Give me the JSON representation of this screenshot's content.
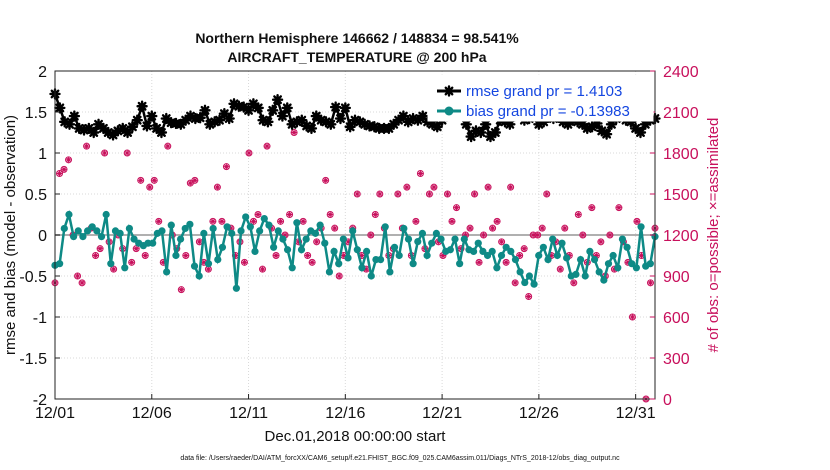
{
  "chart_data": {
    "type": "line",
    "title": "Northern Hemisphere 146662 / 148834 = 98.541%",
    "subtitle": "AIRCRAFT_TEMPERATURE @ 200 hPa",
    "xlabel": "Dec.01,2018 00:00:00 start",
    "ylabel": "rmse and bias (model - observation)",
    "ylabel_right": "# of obs: o=possible; ×=assimilated",
    "xlim": [
      1,
      32
    ],
    "ylim": [
      -2,
      2
    ],
    "ylim_right": [
      0,
      2400
    ],
    "x_ticks": [
      {
        "value": 1,
        "label": "12/01"
      },
      {
        "value": 6,
        "label": "12/06"
      },
      {
        "value": 11,
        "label": "12/11"
      },
      {
        "value": 16,
        "label": "12/16"
      },
      {
        "value": 21,
        "label": "12/21"
      },
      {
        "value": 26,
        "label": "12/26"
      },
      {
        "value": 31,
        "label": "12/31"
      }
    ],
    "y_ticks": [
      "-2",
      "-1.5",
      "-1",
      "-0.5",
      "0",
      "0.5",
      "1",
      "1.5",
      "2"
    ],
    "y_ticks_right": [
      "0",
      "300",
      "600",
      "900",
      "1200",
      "1500",
      "1800",
      "2100",
      "2400"
    ],
    "legend_position": "top-right",
    "series": [
      {
        "name": "rmse grand pr = 1.4103",
        "color": "#000000",
        "marker": "star",
        "values": [
          1.72,
          1.55,
          1.38,
          1.35,
          1.45,
          1.3,
          1.28,
          1.3,
          1.25,
          1.35,
          1.3,
          1.25,
          1.22,
          1.27,
          1.3,
          1.25,
          1.32,
          1.4,
          1.57,
          1.33,
          1.45,
          1.3,
          1.25,
          1.42,
          1.37,
          1.36,
          1.35,
          1.4,
          1.45,
          1.42,
          1.43,
          1.52,
          1.35,
          1.38,
          1.4,
          1.48,
          1.42,
          1.6,
          1.57,
          1.56,
          1.52,
          1.6,
          1.55,
          1.4,
          1.38,
          1.52,
          1.65,
          1.45,
          1.55,
          1.35,
          1.38,
          1.4,
          1.33,
          1.3,
          1.45,
          1.4,
          1.38,
          1.35,
          1.56,
          1.42,
          1.55,
          1.32,
          1.4,
          1.38,
          1.35,
          1.33,
          1.32,
          1.3,
          1.3,
          1.3,
          1.35,
          1.4,
          1.45,
          1.38,
          1.42,
          1.4,
          1.45,
          1.38,
          1.35,
          1.32,
          1.4,
          1.45,
          1.5,
          1.55,
          1.48,
          1.35,
          1.2,
          1.27,
          1.25,
          1.35,
          1.2,
          1.25,
          1.4,
          1.38,
          1.35,
          1.45,
          1.52,
          1.4,
          1.42,
          1.5,
          1.35,
          1.38,
          1.45,
          1.42,
          1.52,
          1.38,
          1.35,
          1.4,
          1.38,
          1.35,
          1.3,
          1.32,
          1.36,
          1.27,
          1.23,
          1.35,
          1.42,
          1.45,
          1.4,
          1.38,
          1.3,
          1.25,
          1.35,
          1.4,
          1.42
        ]
      },
      {
        "name": "bias grand pr = -0.13983",
        "color": "#0e8a86",
        "marker": "circle",
        "values": [
          -0.37,
          -0.35,
          0.08,
          0.25,
          -0.02,
          0.05,
          -0.02,
          0.05,
          0.1,
          0.05,
          -0.02,
          0.25,
          -0.35,
          0.05,
          0.02,
          -0.4,
          0.08,
          -0.05,
          -0.1,
          -0.13,
          -0.1,
          -0.1,
          0.02,
          0.05,
          -0.45,
          0.12,
          -0.25,
          -0.05,
          0.08,
          0.13,
          -0.38,
          -0.5,
          0.02,
          -0.35,
          0.08,
          -0.3,
          -0.15,
          0.1,
          0.02,
          -0.65,
          0.05,
          0.22,
          0.1,
          -0.2,
          0.05,
          0.2,
          0.12,
          -0.15,
          0.05,
          -0.05,
          -0.18,
          -0.4,
          0.15,
          -0.18,
          -0.05,
          0.05,
          0.02,
          0.12,
          -0.1,
          -0.45,
          -0.2,
          -0.35,
          -0.05,
          -0.28,
          0.05,
          -0.18,
          -0.4,
          -0.2,
          -0.5,
          -0.3,
          -0.3,
          0.1,
          -0.45,
          -0.15,
          -0.25,
          0.08,
          -0.05,
          -0.35,
          -0.08,
          0.02,
          -0.25,
          -0.1,
          0.02,
          -0.05,
          -0.2,
          -0.18,
          -0.05,
          -0.35,
          -0.05,
          -0.18,
          -0.2,
          -0.1,
          -0.2,
          -0.25,
          -0.2,
          -0.4,
          -0.25,
          -0.15,
          -0.2,
          -0.3,
          -0.45,
          -0.58,
          -0.5,
          -0.6,
          -0.25,
          -0.15,
          -0.3,
          -0.05,
          -0.25,
          -0.1,
          -0.28,
          -0.5,
          -0.48,
          -0.3,
          -0.5,
          -0.2,
          -0.3,
          -0.45,
          -0.55,
          -0.35,
          -0.25,
          -0.4,
          -0.05,
          -0.15,
          -0.35,
          -0.4,
          0.1,
          -0.38,
          -0.35,
          -0.02
        ]
      }
    ],
    "obs_counts": {
      "possible": [
        850,
        1650,
        1680,
        1750,
        1200,
        900,
        850,
        1850,
        1250,
        1050,
        1100,
        1800,
        1150,
        950,
        1200,
        1100,
        1800,
        1000,
        1100,
        1600,
        1050,
        1550,
        1600,
        1300,
        1000,
        1850,
        1200,
        1100,
        800,
        1050,
        1580,
        1600,
        1150,
        1000,
        950,
        1300,
        1550,
        1300,
        1700,
        1250,
        1050,
        1150,
        1000,
        1800,
        1300,
        1350,
        950,
        1850,
        1250,
        1050,
        1300,
        1200,
        1350,
        1950,
        1150,
        1300,
        1050,
        1000,
        1150,
        1250,
        1600,
        1350,
        1250,
        900,
        1050,
        1150,
        1250,
        1500,
        1050,
        950,
        1200,
        1350,
        1500,
        1250,
        1050,
        1100,
        1500,
        1250,
        1550,
        1050,
        1300,
        1650,
        1100,
        1500,
        1550,
        1150,
        1050,
        1500,
        1300,
        1400,
        1100,
        1200,
        1250,
        1500,
        1000,
        1200,
        1550,
        1250,
        1300,
        1150,
        1000,
        1550,
        850,
        1050,
        1100,
        750,
        1200,
        1200,
        1250,
        1500,
        1050,
        1150,
        950,
        1250,
        1050,
        850,
        1350,
        1200,
        1000,
        1400,
        1050,
        1150,
        900,
        1200,
        950,
        1400,
        1150,
        1000,
        600,
        1300,
        1050,
        0,
        850,
        1250
      ]
    }
  },
  "footnote": "data file: /Users/raeder/DAI/ATM_forcXX/CAM6_setup/f.e21.FHIST_BGC.f09_025.CAM6assim.011/Diags_NTrS_2018-12/obs_diag_output.nc"
}
